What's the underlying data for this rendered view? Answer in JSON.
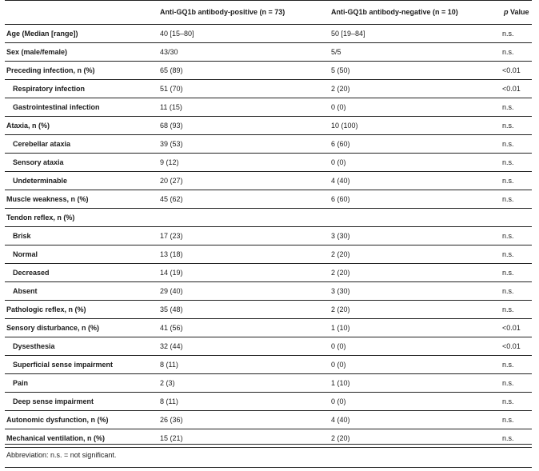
{
  "header": {
    "col0": "",
    "col1": "Anti-GQ1b antibody-positive (n = 73)",
    "col2": "Anti-GQ1b antibody-negative (n = 10)",
    "col3_italic": "p",
    "col3_rest": " Value"
  },
  "rows": [
    {
      "label": "Age (Median [range])",
      "pos": "40 [15–80]",
      "neg": "50 [19–84]",
      "p": "n.s.",
      "indent": false
    },
    {
      "label": "Sex (male/female)",
      "pos": "43/30",
      "neg": "5/5",
      "p": "n.s.",
      "indent": false
    },
    {
      "label": "Preceding infection, n (%)",
      "pos": "65 (89)",
      "neg": "5 (50)",
      "p": "<0.01",
      "indent": false
    },
    {
      "label": "Respiratory infection",
      "pos": "51 (70)",
      "neg": "2 (20)",
      "p": "<0.01",
      "indent": true
    },
    {
      "label": "Gastrointestinal infection",
      "pos": "11 (15)",
      "neg": "0 (0)",
      "p": "n.s.",
      "indent": true
    },
    {
      "label": "Ataxia, n (%)",
      "pos": "68 (93)",
      "neg": "10 (100)",
      "p": "n.s.",
      "indent": false
    },
    {
      "label": "Cerebellar ataxia",
      "pos": "39 (53)",
      "neg": "6 (60)",
      "p": "n.s.",
      "indent": true
    },
    {
      "label": "Sensory ataxia",
      "pos": "9 (12)",
      "neg": "0 (0)",
      "p": "n.s.",
      "indent": true
    },
    {
      "label": "Undeterminable",
      "pos": "20 (27)",
      "neg": "4 (40)",
      "p": "n.s.",
      "indent": true
    },
    {
      "label": "Muscle weakness, n (%)",
      "pos": "45 (62)",
      "neg": "6 (60)",
      "p": "n.s.",
      "indent": false
    },
    {
      "label": "Tendon reflex, n (%)",
      "pos": "",
      "neg": "",
      "p": "",
      "indent": false
    },
    {
      "label": "Brisk",
      "pos": "17 (23)",
      "neg": "3 (30)",
      "p": "n.s.",
      "indent": true
    },
    {
      "label": "Normal",
      "pos": "13 (18)",
      "neg": "2 (20)",
      "p": "n.s.",
      "indent": true
    },
    {
      "label": "Decreased",
      "pos": "14 (19)",
      "neg": "2 (20)",
      "p": "n.s.",
      "indent": true
    },
    {
      "label": "Absent",
      "pos": "29 (40)",
      "neg": "3 (30)",
      "p": "n.s.",
      "indent": true
    },
    {
      "label": "Pathologic reflex, n (%)",
      "pos": "35 (48)",
      "neg": "2 (20)",
      "p": "n.s.",
      "indent": false
    },
    {
      "label": "Sensory disturbance, n (%)",
      "pos": "41 (56)",
      "neg": "1 (10)",
      "p": "<0.01",
      "indent": false
    },
    {
      "label": "Dysesthesia",
      "pos": "32 (44)",
      "neg": "0 (0)",
      "p": "<0.01",
      "indent": true
    },
    {
      "label": "Superficial sense impairment",
      "pos": "8 (11)",
      "neg": "0 (0)",
      "p": "n.s.",
      "indent": true
    },
    {
      "label": "Pain",
      "pos": "2 (3)",
      "neg": "1 (10)",
      "p": "n.s.",
      "indent": true
    },
    {
      "label": "Deep sense impairment",
      "pos": "8 (11)",
      "neg": "0 (0)",
      "p": "n.s.",
      "indent": true
    },
    {
      "label": "Autonomic dysfunction, n (%)",
      "pos": "26 (36)",
      "neg": "4 (40)",
      "p": "n.s.",
      "indent": false
    },
    {
      "label": "Mechanical ventilation, n (%)",
      "pos": "15 (21)",
      "neg": "2 (20)",
      "p": "n.s.",
      "indent": false
    }
  ],
  "footnote": "Abbreviation: n.s. = not significant."
}
